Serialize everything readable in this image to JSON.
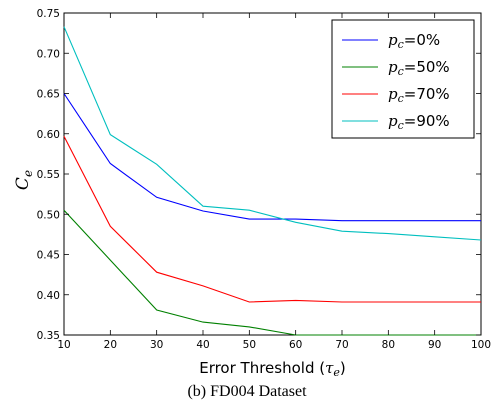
{
  "caption": "(b)  FD004 Dataset",
  "chart_data": {
    "type": "line",
    "xlabel": "Error Threshold (τe)",
    "ylabel": "Ce",
    "xlim": [
      10,
      100
    ],
    "ylim": [
      0.35,
      0.75
    ],
    "xticks": [
      10,
      20,
      30,
      40,
      50,
      60,
      70,
      80,
      90,
      100
    ],
    "yticks": [
      0.35,
      0.4,
      0.45,
      0.5,
      0.55,
      0.6,
      0.65,
      0.7,
      0.75
    ],
    "grid": false,
    "legend_position": "top-right",
    "x": [
      10,
      20,
      30,
      40,
      50,
      60,
      70,
      80,
      90,
      100
    ],
    "series": [
      {
        "name": "pc=0%",
        "color": "#0000ff",
        "values": [
          0.65,
          0.563,
          0.521,
          0.504,
          0.494,
          0.494,
          0.492,
          0.492,
          0.492,
          0.492
        ]
      },
      {
        "name": "pc=50%",
        "color": "#008000",
        "values": [
          0.505,
          0.443,
          0.381,
          0.366,
          0.36,
          0.35,
          0.35,
          0.35,
          0.35,
          0.35
        ]
      },
      {
        "name": "pc=70%",
        "color": "#ff0000",
        "values": [
          0.597,
          0.485,
          0.428,
          0.411,
          0.391,
          0.393,
          0.391,
          0.391,
          0.391,
          0.391
        ]
      },
      {
        "name": "pc=90%",
        "color": "#00bfbf",
        "values": [
          0.733,
          0.599,
          0.562,
          0.51,
          0.505,
          0.49,
          0.479,
          0.476,
          0.472,
          0.468
        ]
      }
    ]
  }
}
